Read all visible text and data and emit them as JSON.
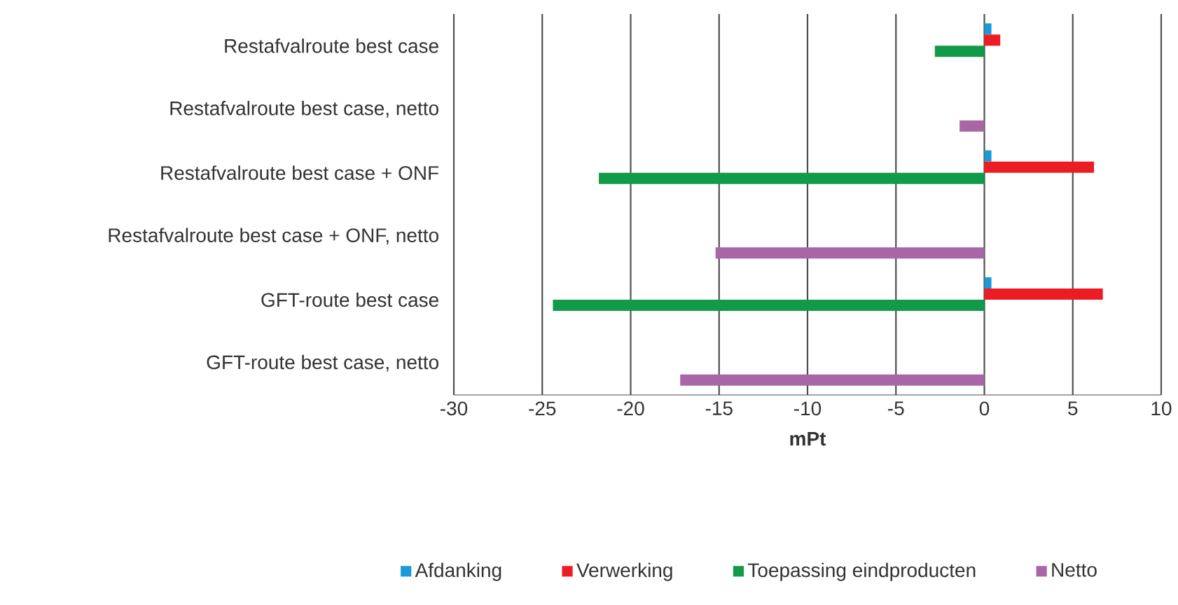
{
  "chart_data": {
    "type": "bar",
    "orientation": "horizontal",
    "xlabel": "mPt",
    "categories": [
      "Restafvalroute best case",
      "Restafvalroute best case, netto",
      "Restafvalroute best case + ONF",
      "Restafvalroute best case + ONF, netto",
      "GFT-route best case",
      "GFT-route best case, netto"
    ],
    "series": [
      {
        "name": "Afdanking",
        "color": "#1a9ad6",
        "values": [
          0.4,
          null,
          0.4,
          null,
          0.4,
          null
        ]
      },
      {
        "name": "Verwerking",
        "color": "#ed1c24",
        "values": [
          0.9,
          null,
          6.2,
          null,
          6.7,
          null
        ]
      },
      {
        "name": "Toepassing eindproducten",
        "color": "#119a48",
        "values": [
          -2.8,
          null,
          -21.8,
          null,
          -24.4,
          null
        ]
      },
      {
        "name": "Netto",
        "color": "#a966a6",
        "values": [
          null,
          -1.4,
          null,
          -15.2,
          null,
          -17.2
        ]
      }
    ],
    "xlim": [
      -30,
      10
    ],
    "xticks": [
      -30,
      -25,
      -20,
      -15,
      -10,
      -5,
      0,
      5,
      10
    ],
    "grid": "x",
    "legend": "bottom"
  }
}
